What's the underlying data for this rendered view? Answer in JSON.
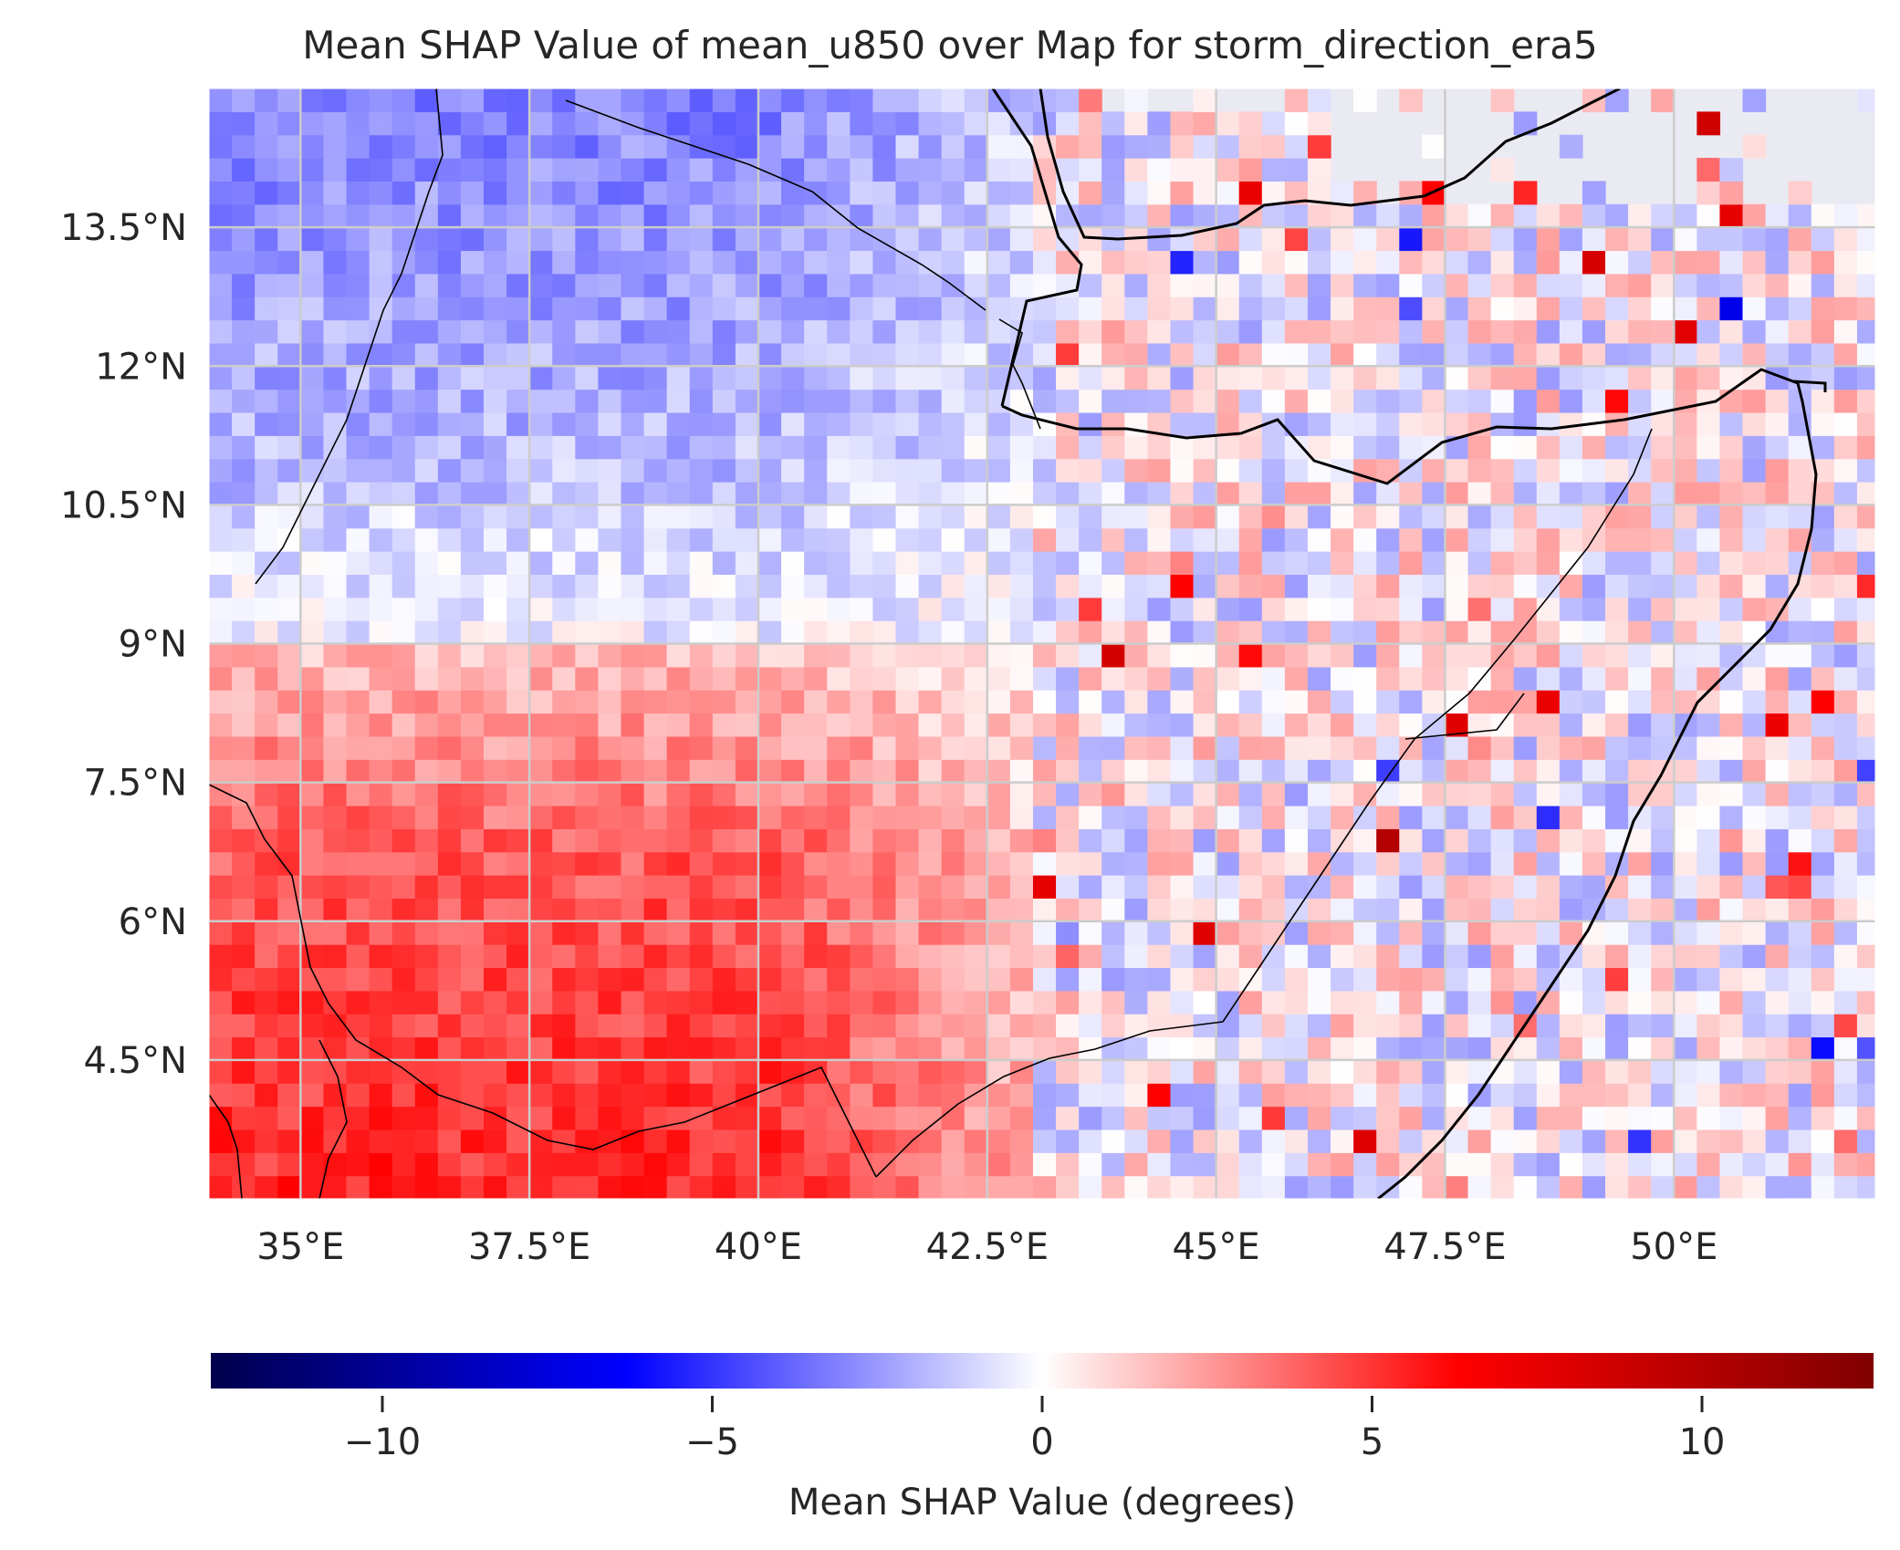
{
  "title": "Mean SHAP Value of mean_u850 over Map for storm_direction_era5",
  "map": {
    "extent_lon": [
      34.0,
      52.2
    ],
    "extent_lat": [
      3.0,
      15.0
    ],
    "grid_lines": true,
    "background_color": "#eaeaf2",
    "x_ticks": [
      {
        "value": 35,
        "label": "35°E"
      },
      {
        "value": 37.5,
        "label": "37.5°E"
      },
      {
        "value": 40,
        "label": "40°E"
      },
      {
        "value": 42.5,
        "label": "42.5°E"
      },
      {
        "value": 45,
        "label": "45°E"
      },
      {
        "value": 47.5,
        "label": "47.5°E"
      },
      {
        "value": 50,
        "label": "50°E"
      }
    ],
    "y_ticks": [
      {
        "value": 13.5,
        "label": "13.5°N"
      },
      {
        "value": 12,
        "label": "12°N"
      },
      {
        "value": 10.5,
        "label": "10.5°N"
      },
      {
        "value": 9,
        "label": "9°N"
      },
      {
        "value": 7.5,
        "label": "7.5°N"
      },
      {
        "value": 6,
        "label": "6°N"
      },
      {
        "value": 4.5,
        "label": "4.5°N"
      }
    ],
    "grid_resolution_deg": 0.25
  },
  "colorbar": {
    "label": "Mean SHAP Value (degrees)",
    "range": [
      -12.6,
      12.6
    ],
    "colormap": "seismic",
    "ticks": [
      {
        "value": -10,
        "label": "−10"
      },
      {
        "value": -5,
        "label": "−5"
      },
      {
        "value": 0,
        "label": "0"
      },
      {
        "value": 5,
        "label": "5"
      },
      {
        "value": 10,
        "label": "10"
      }
    ]
  },
  "chart_data": {
    "type": "heatmap",
    "title": "Mean SHAP Value of mean_u850 over Map for storm_direction_era5",
    "x_range": [
      34.0,
      52.2
    ],
    "y_range": [
      3.0,
      15.0
    ],
    "value_range": [
      -12.6,
      12.6
    ],
    "colorbar_label": "Mean SHAP Value (degrees)",
    "regions": [
      {
        "region": "southwest (35–42°E, 3–6°N)",
        "mean_value": 4.0
      },
      {
        "region": "west-central (35–42°E, 7–9°N)",
        "mean_value": 1.5
      },
      {
        "region": "northwest (35–42°E, 10–14.5°N)",
        "mean_value": -2.0
      },
      {
        "region": "east (44–52°E, 4–12°N)",
        "mean_value": -0.5
      },
      {
        "region": "far northeast (48–52°E, 12–14°N)",
        "mean_value": 1.0
      }
    ]
  }
}
